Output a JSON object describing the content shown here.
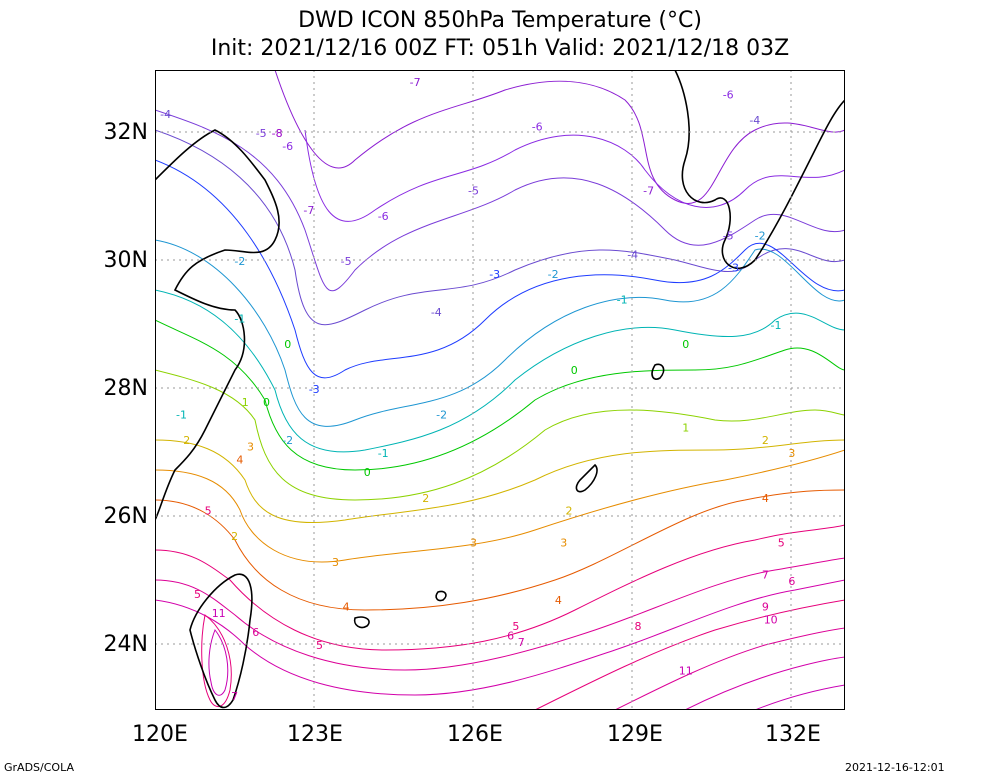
{
  "title": {
    "line1": "DWD ICON 850hPa Temperature (°C)",
    "line2": "Init: 2021/12/16 00Z  FT: 051h  Valid: 2021/12/18 03Z"
  },
  "axes": {
    "lat_labels": [
      "32N",
      "30N",
      "28N",
      "26N",
      "24N"
    ],
    "lon_labels": [
      "120E",
      "123E",
      "126E",
      "129E",
      "132E"
    ]
  },
  "footer": {
    "left": "GrADS/COLA",
    "right": "2021-12-16-12:01"
  },
  "map": {
    "lon_range": [
      120,
      133
    ],
    "lat_range": [
      23,
      33
    ],
    "contour_colors": {
      "-8": "#9a00c8",
      "-7": "#8c1ed2",
      "-6": "#8a2be2",
      "-5": "#7a3cd9",
      "-4": "#6a4ad0",
      "-3": "#1e3cff",
      "-2": "#1e96d2",
      "-1": "#00b4b4",
      "0": "#00c800",
      "1": "#8cd200",
      "2": "#d2b400",
      "3": "#e68c00",
      "4": "#e65a00",
      "5": "#e6007a",
      "6": "#dc0096",
      "7": "#d200aa",
      "8": "#e6007a",
      "9": "#dc0096",
      "10": "#d200aa",
      "11": "#c800b4"
    },
    "contour_labels": [
      {
        "text": "-7",
        "lon": 124.9,
        "lat": 32.8
      },
      {
        "text": "-6",
        "lon": 127.2,
        "lat": 32.1
      },
      {
        "text": "-5",
        "lon": 122.0,
        "lat": 32.0
      },
      {
        "text": "-8",
        "lon": 122.3,
        "lat": 32.0
      },
      {
        "text": "-6",
        "lon": 122.5,
        "lat": 31.8
      },
      {
        "text": "-4",
        "lon": 120.2,
        "lat": 32.3
      },
      {
        "text": "-6",
        "lon": 130.8,
        "lat": 32.6
      },
      {
        "text": "-4",
        "lon": 131.3,
        "lat": 32.2
      },
      {
        "text": "-5",
        "lon": 126.0,
        "lat": 31.1
      },
      {
        "text": "-7",
        "lon": 129.3,
        "lat": 31.1
      },
      {
        "text": "-7",
        "lon": 122.9,
        "lat": 30.8
      },
      {
        "text": "-6",
        "lon": 124.3,
        "lat": 30.7
      },
      {
        "text": "-5",
        "lon": 130.8,
        "lat": 30.4
      },
      {
        "text": "-2",
        "lon": 131.4,
        "lat": 30.4
      },
      {
        "text": "-4",
        "lon": 129.0,
        "lat": 30.1
      },
      {
        "text": "-3",
        "lon": 130.9,
        "lat": 29.9
      },
      {
        "text": "-5",
        "lon": 123.6,
        "lat": 30.0
      },
      {
        "text": "-2",
        "lon": 121.6,
        "lat": 30.0
      },
      {
        "text": "-3",
        "lon": 126.4,
        "lat": 29.8
      },
      {
        "text": "-2",
        "lon": 127.5,
        "lat": 29.8
      },
      {
        "text": "-1",
        "lon": 128.8,
        "lat": 29.4
      },
      {
        "text": "-4",
        "lon": 125.3,
        "lat": 29.2
      },
      {
        "text": "-1",
        "lon": 121.6,
        "lat": 29.1
      },
      {
        "text": "-1",
        "lon": 131.7,
        "lat": 29.0
      },
      {
        "text": "0",
        "lon": 130.0,
        "lat": 28.7
      },
      {
        "text": "0",
        "lon": 122.5,
        "lat": 28.7
      },
      {
        "text": "0",
        "lon": 127.9,
        "lat": 28.3
      },
      {
        "text": "-3",
        "lon": 123.0,
        "lat": 28.0
      },
      {
        "text": "-2",
        "lon": 125.4,
        "lat": 27.6
      },
      {
        "text": "0",
        "lon": 122.1,
        "lat": 27.8
      },
      {
        "text": "-1",
        "lon": 120.5,
        "lat": 27.6
      },
      {
        "text": "1",
        "lon": 121.7,
        "lat": 27.8
      },
      {
        "text": "1",
        "lon": 130.0,
        "lat": 27.4
      },
      {
        "text": "-2",
        "lon": 122.5,
        "lat": 27.2
      },
      {
        "text": "2",
        "lon": 131.5,
        "lat": 27.2
      },
      {
        "text": "3",
        "lon": 132.0,
        "lat": 27.0
      },
      {
        "text": "3",
        "lon": 121.8,
        "lat": 27.1
      },
      {
        "text": "-1",
        "lon": 124.3,
        "lat": 27.0
      },
      {
        "text": "4",
        "lon": 121.6,
        "lat": 26.9
      },
      {
        "text": "0",
        "lon": 124.0,
        "lat": 26.7
      },
      {
        "text": "2",
        "lon": 120.6,
        "lat": 27.2
      },
      {
        "text": "4",
        "lon": 131.5,
        "lat": 26.3
      },
      {
        "text": "2",
        "lon": 125.1,
        "lat": 26.3
      },
      {
        "text": "5",
        "lon": 121.0,
        "lat": 26.1
      },
      {
        "text": "2",
        "lon": 127.8,
        "lat": 26.1
      },
      {
        "text": "2",
        "lon": 121.5,
        "lat": 25.7
      },
      {
        "text": "3",
        "lon": 126.0,
        "lat": 25.6
      },
      {
        "text": "3",
        "lon": 127.7,
        "lat": 25.6
      },
      {
        "text": "5",
        "lon": 131.8,
        "lat": 25.6
      },
      {
        "text": "3",
        "lon": 123.4,
        "lat": 25.3
      },
      {
        "text": "7",
        "lon": 131.5,
        "lat": 25.1
      },
      {
        "text": "6",
        "lon": 132.0,
        "lat": 25.0
      },
      {
        "text": "4",
        "lon": 127.6,
        "lat": 24.7
      },
      {
        "text": "9",
        "lon": 131.5,
        "lat": 24.6
      },
      {
        "text": "4",
        "lon": 123.6,
        "lat": 24.6
      },
      {
        "text": "10",
        "lon": 131.6,
        "lat": 24.4
      },
      {
        "text": "11",
        "lon": 121.2,
        "lat": 24.5
      },
      {
        "text": "8",
        "lon": 129.1,
        "lat": 24.3
      },
      {
        "text": "5",
        "lon": 120.8,
        "lat": 24.8
      },
      {
        "text": "5",
        "lon": 126.8,
        "lat": 24.3
      },
      {
        "text": "6",
        "lon": 126.7,
        "lat": 24.15
      },
      {
        "text": "6",
        "lon": 121.9,
        "lat": 24.2
      },
      {
        "text": "7",
        "lon": 126.9,
        "lat": 24.05
      },
      {
        "text": "5",
        "lon": 123.1,
        "lat": 24.0
      },
      {
        "text": "11",
        "lon": 130.0,
        "lat": 23.6
      },
      {
        "text": "7",
        "lon": 121.5,
        "lat": 23.2
      }
    ]
  }
}
